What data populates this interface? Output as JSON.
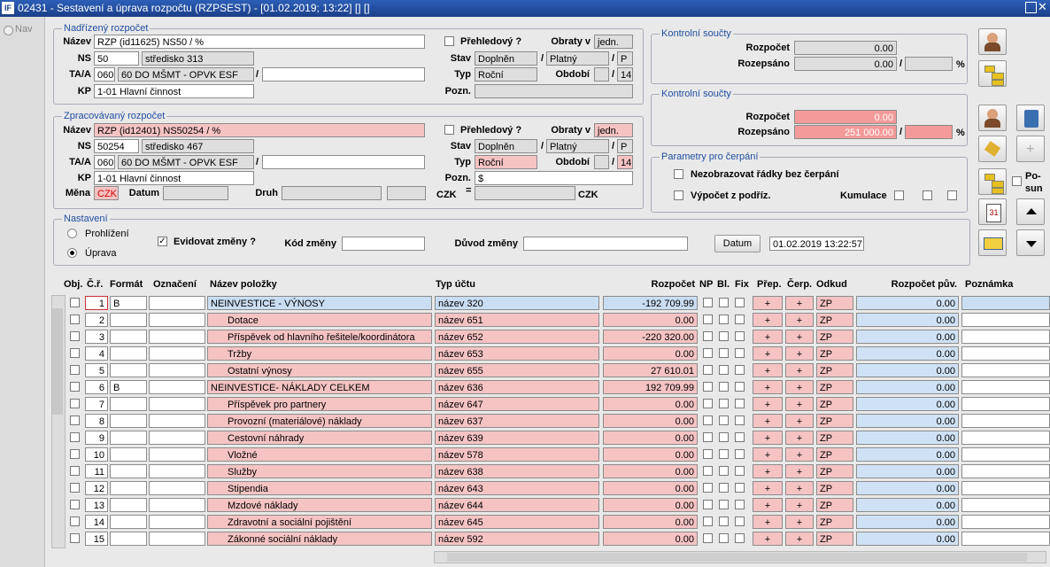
{
  "window": {
    "title": "02431 - Sestavení a úprava rozpočtu (RZPSEST) - [01.02.2019; 13:22] [] []",
    "nav": "Nav",
    "scroll_label": "Po-sun"
  },
  "parent_budget": {
    "legend": "Nadřízený rozpočet",
    "label_name": "Název",
    "name": "RZP (id11625) NS50 / %",
    "label_ns": "NS",
    "ns": "50",
    "ns_name": "středisko 313",
    "label_ta": "TA/A",
    "ta": "060",
    "ta_name": "60 DO MŠMT - OPVK ESF",
    "ta_sep": "/",
    "label_kp": "KP",
    "kp": "1-01 Hlavní činnost",
    "overview": "Přehledový ?",
    "label_turnover": "Obraty v",
    "turnover": "jedn.",
    "label_state": "Stav",
    "state": "Doplněn",
    "state_sep": "/",
    "validity": "Platný",
    "validity_sep": "/",
    "validity_code": "P",
    "label_type": "Typ",
    "type": "Roční",
    "label_period": "Období",
    "period_sep": "/",
    "period": "14",
    "label_note": "Pozn."
  },
  "current_budget": {
    "legend": "Zpracovávaný rozpočet",
    "label_name": "Název",
    "name": "RZP (id12401) NS50254 / %",
    "label_ns": "NS",
    "ns": "50254",
    "ns_name": "středisko 467",
    "label_ta": "TA/A",
    "ta": "060",
    "ta_name": "60 DO MŠMT - OPVK ESF",
    "ta_sep": "/",
    "label_kp": "KP",
    "kp": "1-01 Hlavní činnost",
    "overview": "Přehledový ?",
    "label_turnover": "Obraty v",
    "turnover": "jedn.",
    "label_state": "Stav",
    "state": "Doplněn",
    "state_sep": "/",
    "validity": "Platný",
    "validity_sep": "/",
    "validity_code": "P",
    "label_type": "Typ",
    "type": "Roční",
    "label_period": "Období",
    "period_sep": "/",
    "period": "14",
    "label_note": "Pozn.",
    "note": "$",
    "label_currency": "Měna",
    "currency": "CZK",
    "label_date": "Datum",
    "label_kind": "Druh",
    "czk_left": "CZK",
    "eq": "=",
    "czk_right": "CZK"
  },
  "control_parent": {
    "legend": "Kontrolní součty",
    "label_budget": "Rozpočet",
    "budget": "0.00",
    "label_allocated": "Rozepsáno",
    "allocated": "0.00",
    "sep": "/",
    "percent": "%"
  },
  "control_current": {
    "legend": "Kontrolní součty",
    "label_budget": "Rozpočet",
    "budget": "0.00",
    "label_allocated": "Rozepsáno",
    "allocated": "251 000.00",
    "sep": "/",
    "percent": "%"
  },
  "drawing_params": {
    "legend": "Parametry pro čerpání",
    "hide_rows": "Nezobrazovat řádky bez čerpání",
    "from_sub": "Výpočet z podříz.",
    "cumulation": "Kumulace"
  },
  "settings": {
    "legend": "Nastavení",
    "browse": "Prohlížení",
    "edit": "Úprava",
    "track_changes": "Evidovat změny ?",
    "label_change_code": "Kód změny",
    "label_change_reason": "Důvod změny",
    "date_button": "Datum",
    "date": "01.02.2019 13:22:57"
  },
  "table": {
    "headers": [
      "Obj.",
      "Č.ř.",
      "Formát",
      "Označení",
      "Název položky",
      "Typ účtu",
      "Rozpočet",
      "NP",
      "Bl.",
      "Fix",
      "Přep.",
      "Čerp.",
      "Odkud",
      "Rozpočet pův.",
      "Poznámka"
    ],
    "rows": [
      {
        "no": "1",
        "format": "B",
        "name": "NEINVESTICE - VÝNOSY",
        "account": "název 320",
        "budget": "-192 709.99",
        "transfer": "+",
        "draw": "+",
        "source": "ZP",
        "original": "0.00"
      },
      {
        "no": "2",
        "name": "Dotace",
        "account": "název 651",
        "budget": "0.00",
        "transfer": "+",
        "draw": "+",
        "source": "ZP",
        "original": "0.00"
      },
      {
        "no": "3",
        "name": "Příspěvek od hlavního řešitele/koordinátora",
        "account": "název 652",
        "budget": "-220 320.00",
        "transfer": "+",
        "draw": "+",
        "source": "ZP",
        "original": "0.00"
      },
      {
        "no": "4",
        "name": "Tržby",
        "account": "název 653",
        "budget": "0.00",
        "transfer": "+",
        "draw": "+",
        "source": "ZP",
        "original": "0.00"
      },
      {
        "no": "5",
        "name": "Ostatní výnosy",
        "account": "název 655",
        "budget": "27 610.01",
        "transfer": "+",
        "draw": "+",
        "source": "ZP",
        "original": "0.00"
      },
      {
        "no": "6",
        "format": "B",
        "name": "NEINVESTICE- NÁKLADY CELKEM",
        "account": "název 636",
        "budget": "192 709.99",
        "transfer": "+",
        "draw": "+",
        "source": "ZP",
        "original": "0.00"
      },
      {
        "no": "7",
        "name": "Příspěvek pro partnery",
        "account": "název 647",
        "budget": "0.00",
        "transfer": "+",
        "draw": "+",
        "source": "ZP",
        "original": "0.00"
      },
      {
        "no": "8",
        "name": "Provozní (materiálové) náklady",
        "account": "název 637",
        "budget": "0.00",
        "transfer": "+",
        "draw": "+",
        "source": "ZP",
        "original": "0.00"
      },
      {
        "no": "9",
        "name": "Cestovní náhrady",
        "account": "název 639",
        "budget": "0.00",
        "transfer": "+",
        "draw": "+",
        "source": "ZP",
        "original": "0.00"
      },
      {
        "no": "10",
        "name": "Vložné",
        "account": "název 578",
        "budget": "0.00",
        "transfer": "+",
        "draw": "+",
        "source": "ZP",
        "original": "0.00"
      },
      {
        "no": "11",
        "name": "Služby",
        "account": "název 638",
        "budget": "0.00",
        "transfer": "+",
        "draw": "+",
        "source": "ZP",
        "original": "0.00"
      },
      {
        "no": "12",
        "name": "Stipendia",
        "account": "název 643",
        "budget": "0.00",
        "transfer": "+",
        "draw": "+",
        "source": "ZP",
        "original": "0.00"
      },
      {
        "no": "13",
        "name": "Mzdové náklady",
        "account": "název 644",
        "budget": "0.00",
        "transfer": "+",
        "draw": "+",
        "source": "ZP",
        "original": "0.00"
      },
      {
        "no": "14",
        "name": "Zdravotní a sociální pojištění",
        "account": "název 645",
        "budget": "0.00",
        "transfer": "+",
        "draw": "+",
        "source": "ZP",
        "original": "0.00"
      },
      {
        "no": "15",
        "name": "Zákonné sociální náklady",
        "account": "název 592",
        "budget": "0.00",
        "transfer": "+",
        "draw": "+",
        "source": "ZP",
        "original": "0.00"
      }
    ]
  }
}
